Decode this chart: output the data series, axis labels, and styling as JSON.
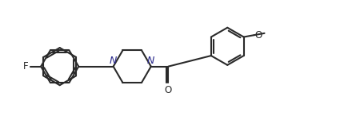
{
  "background": "#ffffff",
  "line_color": "#2a2a2a",
  "label_color_N": "#2a2a8c",
  "label_color_O": "#2a2a2a",
  "label_color_F": "#2a2a2a",
  "line_width": 1.5,
  "dbo": 0.06,
  "font_size": 8.5,
  "fig_width": 4.3,
  "fig_height": 1.51,
  "dpi": 100,
  "xlim": [
    0.0,
    9.5
  ],
  "ylim": [
    0.3,
    3.5
  ]
}
